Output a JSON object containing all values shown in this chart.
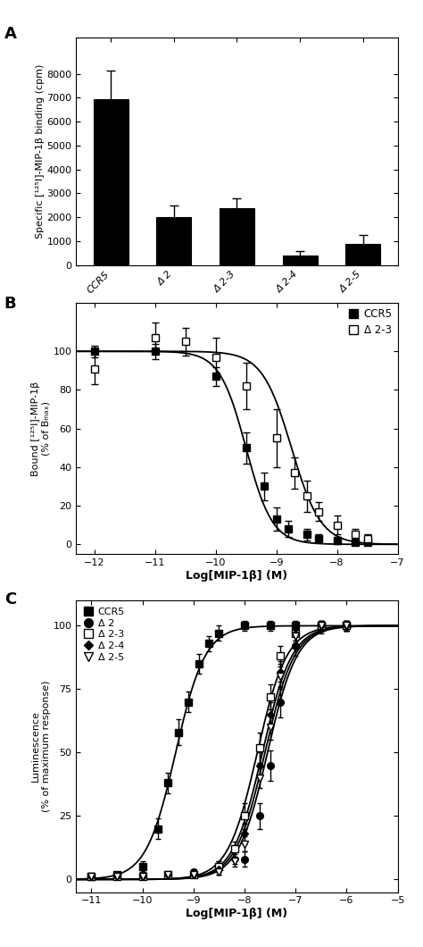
{
  "panel_A": {
    "categories": [
      "CCR5",
      "Δ 2",
      "Δ 2-3",
      "Δ 2-4",
      "Δ 2-5"
    ],
    "values": [
      6950,
      2000,
      2400,
      400,
      900
    ],
    "errors": [
      1200,
      500,
      400,
      200,
      350
    ],
    "ylabel": "Specific [¹²⁵I]-MIP-1β binding (cpm)",
    "ylim": [
      0,
      9500
    ],
    "yticks": [
      0,
      1000,
      2000,
      3000,
      4000,
      5000,
      6000,
      7000,
      8000
    ],
    "bar_color": "#000000"
  },
  "panel_B": {
    "ccr5_x": [
      -12,
      -11,
      -10,
      -9.5,
      -9.2,
      -9.0,
      -8.8,
      -8.5,
      -8.3,
      -8.0,
      -7.7,
      -7.5
    ],
    "ccr5_y": [
      100,
      100,
      87,
      50,
      30,
      13,
      8,
      5,
      3,
      2,
      1,
      1
    ],
    "ccr5_err": [
      3,
      4,
      5,
      8,
      7,
      6,
      4,
      3,
      2,
      2,
      1,
      1
    ],
    "d23_x": [
      -12,
      -11,
      -10.5,
      -10,
      -9.5,
      -9.0,
      -8.7,
      -8.5,
      -8.3,
      -8.0,
      -7.7,
      -7.5
    ],
    "d23_y": [
      91,
      107,
      105,
      97,
      82,
      55,
      37,
      25,
      17,
      10,
      5,
      3
    ],
    "d23_err": [
      8,
      8,
      7,
      10,
      12,
      15,
      8,
      8,
      5,
      5,
      3,
      2
    ],
    "ccr5_ec50": -9.5,
    "ccr5_hill": 2.0,
    "d23_ec50": -8.75,
    "d23_hill": 1.8,
    "ylabel": "Bound [¹²⁵I]-MIP-1β\n(% of Bₘₐₓ)",
    "xlabel": "Log[MIP-1β] (M)",
    "xlim": [
      -12.3,
      -7.0
    ],
    "ylim": [
      -5,
      125
    ],
    "yticks": [
      0,
      20,
      40,
      60,
      80,
      100
    ],
    "xticks": [
      -12,
      -11,
      -10,
      -9,
      -8,
      -7
    ]
  },
  "panel_C": {
    "ccr5_x": [
      -11,
      -10.5,
      -10,
      -9.7,
      -9.5,
      -9.3,
      -9.1,
      -8.9,
      -8.7,
      -8.5,
      -8.0,
      -7.5,
      -7.0,
      -6.5,
      -6.0
    ],
    "ccr5_y": [
      1,
      2,
      5,
      20,
      38,
      58,
      70,
      85,
      93,
      97,
      100,
      100,
      100,
      100,
      100
    ],
    "ccr5_err": [
      1,
      1,
      2,
      4,
      4,
      5,
      4,
      4,
      3,
      3,
      2,
      2,
      2,
      2,
      2
    ],
    "ccr5_ec50": -9.35,
    "ccr5_hill": 1.5,
    "d2_x": [
      -11,
      -10.5,
      -10,
      -9.5,
      -9,
      -8.5,
      -8.0,
      -7.7,
      -7.5,
      -7.3,
      -7.0,
      -6.5,
      -6.0
    ],
    "d2_y": [
      1,
      1,
      2,
      2,
      3,
      5,
      8,
      25,
      45,
      70,
      92,
      99,
      100
    ],
    "d2_err": [
      1,
      1,
      1,
      1,
      1,
      2,
      3,
      5,
      6,
      6,
      4,
      2,
      2
    ],
    "d2_ec50": -7.55,
    "d2_hill": 1.5,
    "d23_x": [
      -11,
      -10.5,
      -10,
      -9.5,
      -9,
      -8.5,
      -8.2,
      -8.0,
      -7.7,
      -7.5,
      -7.3,
      -7.0,
      -6.5,
      -6.0
    ],
    "d23_y": [
      1,
      1,
      1,
      2,
      2,
      5,
      12,
      25,
      52,
      72,
      88,
      97,
      100,
      100
    ],
    "d23_err": [
      1,
      1,
      1,
      1,
      1,
      2,
      3,
      5,
      6,
      5,
      4,
      3,
      2,
      2
    ],
    "d23_ec50": -7.75,
    "d23_hill": 1.5,
    "d24_x": [
      -11,
      -10.5,
      -10,
      -9.5,
      -9,
      -8.5,
      -8.2,
      -8.0,
      -7.7,
      -7.5,
      -7.3,
      -7.0,
      -6.5,
      -6.0
    ],
    "d24_y": [
      1,
      1,
      1,
      2,
      2,
      4,
      8,
      18,
      45,
      65,
      82,
      97,
      100,
      100
    ],
    "d24_err": [
      1,
      1,
      1,
      1,
      1,
      2,
      2,
      4,
      5,
      5,
      4,
      3,
      2,
      2
    ],
    "d24_ec50": -7.65,
    "d24_hill": 1.5,
    "d25_x": [
      -11,
      -10.5,
      -10,
      -9.5,
      -9,
      -8.5,
      -8.2,
      -8.0,
      -7.7,
      -7.5,
      -7.3,
      -7.0,
      -6.5,
      -6.0
    ],
    "d25_y": [
      1,
      1,
      1,
      2,
      2,
      3,
      7,
      14,
      40,
      60,
      80,
      96,
      100,
      100
    ],
    "d25_err": [
      1,
      1,
      1,
      1,
      1,
      1,
      2,
      3,
      4,
      5,
      5,
      3,
      2,
      2
    ],
    "d25_ec50": -7.6,
    "d25_hill": 1.5,
    "ylabel": "Luminescence\n(% of maximum response)",
    "xlabel": "Log[MIP-1β] (M)",
    "xlim": [
      -11.3,
      -5.0
    ],
    "ylim": [
      -5,
      110
    ],
    "yticks": [
      0,
      25,
      50,
      75,
      100
    ],
    "xticks": [
      -11,
      -10,
      -9,
      -8,
      -7,
      -6,
      -5
    ]
  },
  "fig_bg": "#ffffff"
}
